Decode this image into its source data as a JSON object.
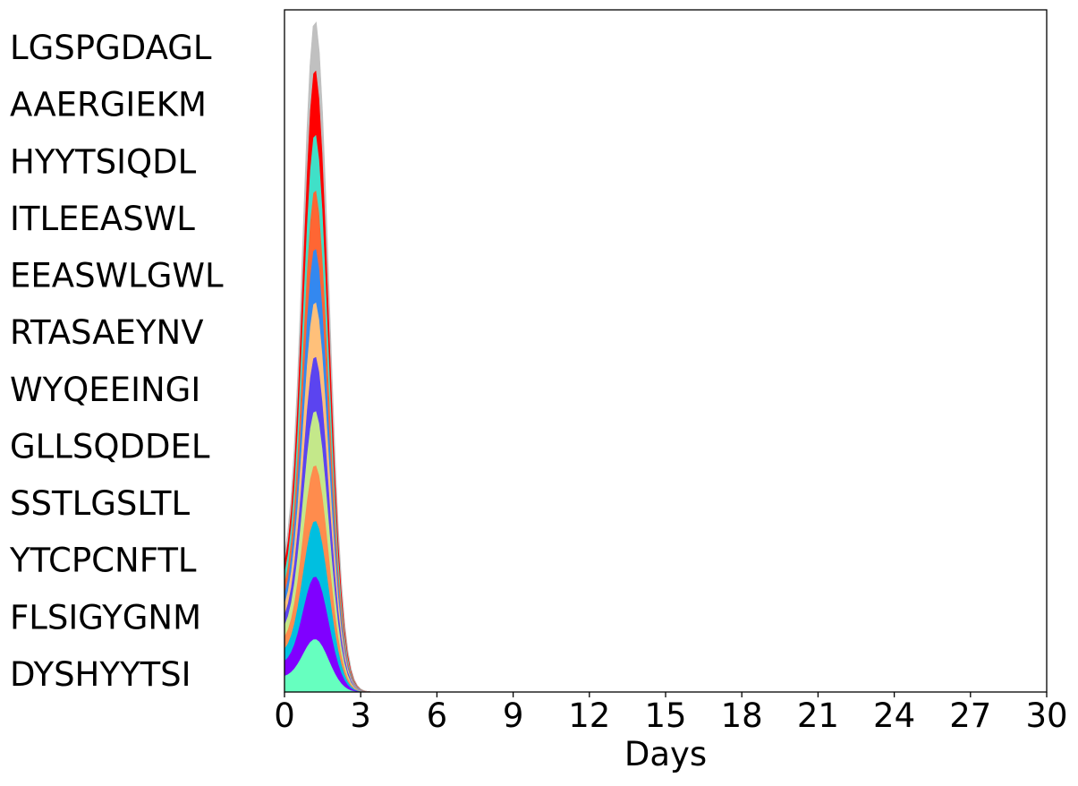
{
  "chart_data": {
    "type": "area",
    "subtype": "stacked-ridge",
    "title": "",
    "xlabel": "Days",
    "ylabel": "",
    "xlim": [
      0,
      30
    ],
    "x_ticks": [
      0,
      3,
      6,
      9,
      12,
      15,
      18,
      21,
      24,
      27,
      30
    ],
    "x_tick_labels": [
      "0",
      "3",
      "6",
      "9",
      "12",
      "15",
      "18",
      "21",
      "24",
      "27",
      "30"
    ],
    "grid": false,
    "legend": "none",
    "peak_day": 1.2,
    "series": [
      {
        "name": "DYSHYYTSI",
        "color": "#66ffbf",
        "peak": 0.078,
        "start": 0.024
      },
      {
        "name": "FLSIGYGNM",
        "color": "#8000ff",
        "peak": 0.092,
        "start": 0.022
      },
      {
        "name": "YTCPCNFTL",
        "color": "#00bfe0",
        "peak": 0.082,
        "start": 0.018
      },
      {
        "name": "SSTLGSLTL",
        "color": "#ff8c4d",
        "peak": 0.082,
        "start": 0.018
      },
      {
        "name": "GLLSQDDEL",
        "color": "#c4e88a",
        "peak": 0.08,
        "start": 0.017
      },
      {
        "name": "WYQEEINGI",
        "color": "#5b44f0",
        "peak": 0.08,
        "start": 0.016
      },
      {
        "name": "RTASAEYNV",
        "color": "#ffc07a",
        "peak": 0.08,
        "start": 0.016
      },
      {
        "name": "EEASWLGWL",
        "color": "#3388f0",
        "peak": 0.079,
        "start": 0.015
      },
      {
        "name": "ITLEEASWL",
        "color": "#ff6633",
        "peak": 0.086,
        "start": 0.016
      },
      {
        "name": "HYYTSIQDL",
        "color": "#40e0c8",
        "peak": 0.082,
        "start": 0.015
      },
      {
        "name": "AAERGIEKM",
        "color": "#ff0000",
        "peak": 0.095,
        "start": 0.016
      },
      {
        "name": "LGSPGDAGL",
        "color": "#c0c0c0",
        "peak": 0.07,
        "start": 0.01
      }
    ]
  }
}
